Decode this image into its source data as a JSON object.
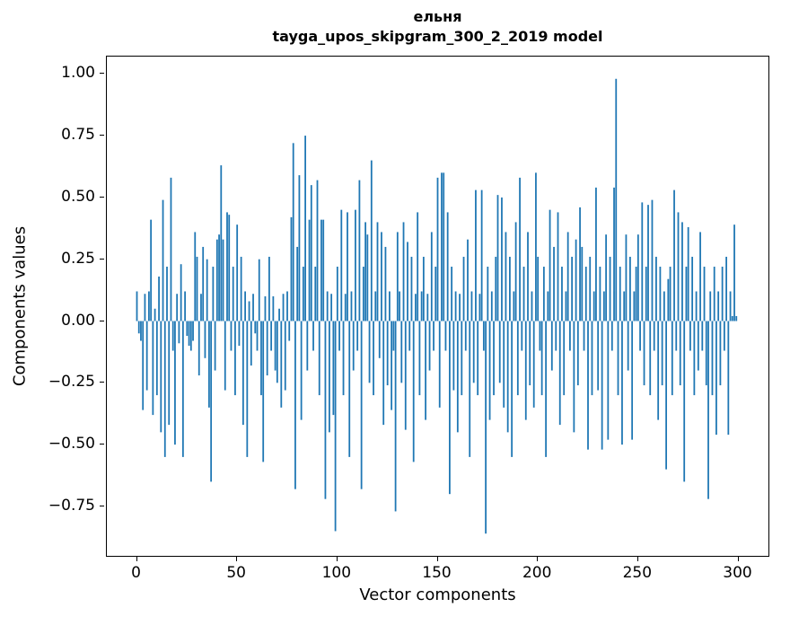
{
  "figure": {
    "title_line1": "ельня",
    "title_line2": "tayga_upos_skipgram_300_2_2019 model",
    "xlabel": "Vector components",
    "ylabel": "Components values"
  },
  "chart_data": {
    "type": "bar",
    "title": "ельня\ntayga_upos_skipgram_300_2_2019 model",
    "xlabel": "Vector components",
    "ylabel": "Components values",
    "legend": null,
    "grid": false,
    "bar_color": "#1f77b4",
    "xlim": [
      -15,
      315
    ],
    "ylim": [
      -0.95,
      1.07
    ],
    "xticks": [
      0,
      50,
      100,
      150,
      200,
      250,
      300
    ],
    "yticks": [
      1.0,
      0.75,
      0.5,
      0.25,
      0.0,
      -0.25,
      -0.5,
      -0.75
    ],
    "x_start": 0,
    "x_step": 1,
    "values": [
      0.12,
      -0.05,
      -0.08,
      -0.36,
      0.11,
      -0.28,
      0.12,
      0.41,
      -0.38,
      0.05,
      -0.3,
      0.18,
      -0.45,
      0.49,
      -0.55,
      0.22,
      -0.42,
      0.58,
      -0.12,
      -0.5,
      0.11,
      -0.09,
      0.23,
      -0.55,
      0.12,
      -0.06,
      -0.1,
      -0.12,
      -0.08,
      0.36,
      0.26,
      -0.22,
      0.11,
      0.3,
      -0.15,
      0.25,
      -0.35,
      -0.65,
      0.22,
      -0.2,
      0.33,
      0.35,
      0.63,
      0.33,
      -0.28,
      0.44,
      0.43,
      -0.12,
      0.22,
      -0.3,
      0.39,
      -0.1,
      0.26,
      -0.42,
      0.12,
      -0.55,
      0.08,
      -0.18,
      0.11,
      -0.05,
      -0.12,
      0.25,
      -0.3,
      -0.57,
      0.1,
      -0.22,
      0.26,
      -0.12,
      0.1,
      -0.2,
      -0.25,
      0.05,
      -0.35,
      0.11,
      -0.28,
      0.12,
      -0.08,
      0.42,
      0.72,
      -0.68,
      0.3,
      0.59,
      -0.4,
      0.22,
      0.75,
      -0.2,
      0.41,
      0.55,
      -0.12,
      0.22,
      0.57,
      -0.3,
      0.41,
      0.41,
      -0.72,
      0.12,
      -0.45,
      0.11,
      -0.38,
      -0.85,
      0.22,
      -0.12,
      0.45,
      -0.3,
      0.11,
      0.44,
      -0.55,
      0.12,
      -0.2,
      0.45,
      -0.12,
      0.57,
      -0.68,
      0.22,
      0.4,
      0.35,
      -0.25,
      0.65,
      -0.3,
      0.12,
      0.4,
      -0.15,
      0.36,
      -0.42,
      0.3,
      -0.26,
      0.12,
      -0.36,
      -0.12,
      -0.77,
      0.36,
      0.12,
      -0.25,
      0.4,
      -0.44,
      0.32,
      -0.12,
      0.26,
      -0.57,
      0.11,
      0.44,
      -0.3,
      0.12,
      0.26,
      -0.4,
      0.11,
      -0.2,
      0.36,
      -0.12,
      0.22,
      0.58,
      -0.35,
      0.6,
      0.6,
      -0.12,
      0.44,
      -0.7,
      0.22,
      -0.28,
      0.12,
      -0.45,
      0.11,
      -0.3,
      0.26,
      -0.12,
      0.33,
      -0.55,
      0.12,
      -0.25,
      0.53,
      -0.3,
      0.11,
      0.53,
      -0.12,
      -0.86,
      0.22,
      -0.4,
      0.12,
      -0.3,
      0.26,
      0.51,
      -0.25,
      0.5,
      -0.35,
      0.36,
      -0.45,
      0.26,
      -0.55,
      0.12,
      0.4,
      -0.3,
      0.58,
      -0.12,
      0.22,
      -0.4,
      0.36,
      -0.26,
      0.12,
      -0.35,
      0.6,
      0.26,
      -0.12,
      -0.3,
      0.22,
      -0.55,
      0.12,
      0.45,
      -0.2,
      0.3,
      -0.12,
      0.44,
      -0.42,
      0.22,
      -0.3,
      0.12,
      0.36,
      -0.12,
      0.26,
      -0.45,
      0.33,
      -0.26,
      0.46,
      0.3,
      -0.12,
      0.22,
      -0.52,
      0.26,
      -0.3,
      0.12,
      0.54,
      -0.28,
      0.22,
      -0.52,
      0.12,
      0.35,
      -0.48,
      0.26,
      -0.12,
      0.54,
      0.98,
      -0.3,
      0.22,
      -0.5,
      0.12,
      0.35,
      -0.2,
      0.26,
      -0.48,
      0.12,
      0.22,
      0.35,
      -0.12,
      0.48,
      -0.26,
      0.22,
      0.47,
      -0.3,
      0.49,
      -0.12,
      0.26,
      -0.4,
      0.22,
      -0.26,
      0.12,
      -0.6,
      0.17,
      0.22,
      -0.3,
      0.53,
      -0.12,
      0.44,
      -0.26,
      0.4,
      -0.65,
      0.22,
      0.38,
      -0.12,
      0.26,
      -0.3,
      0.12,
      -0.2,
      0.36,
      -0.12,
      0.22,
      -0.26,
      -0.72,
      0.12,
      -0.3,
      0.22,
      -0.46,
      0.12,
      -0.26,
      0.22,
      -0.12,
      0.26,
      -0.46,
      0.12,
      0.02,
      0.39,
      0.02
    ]
  }
}
